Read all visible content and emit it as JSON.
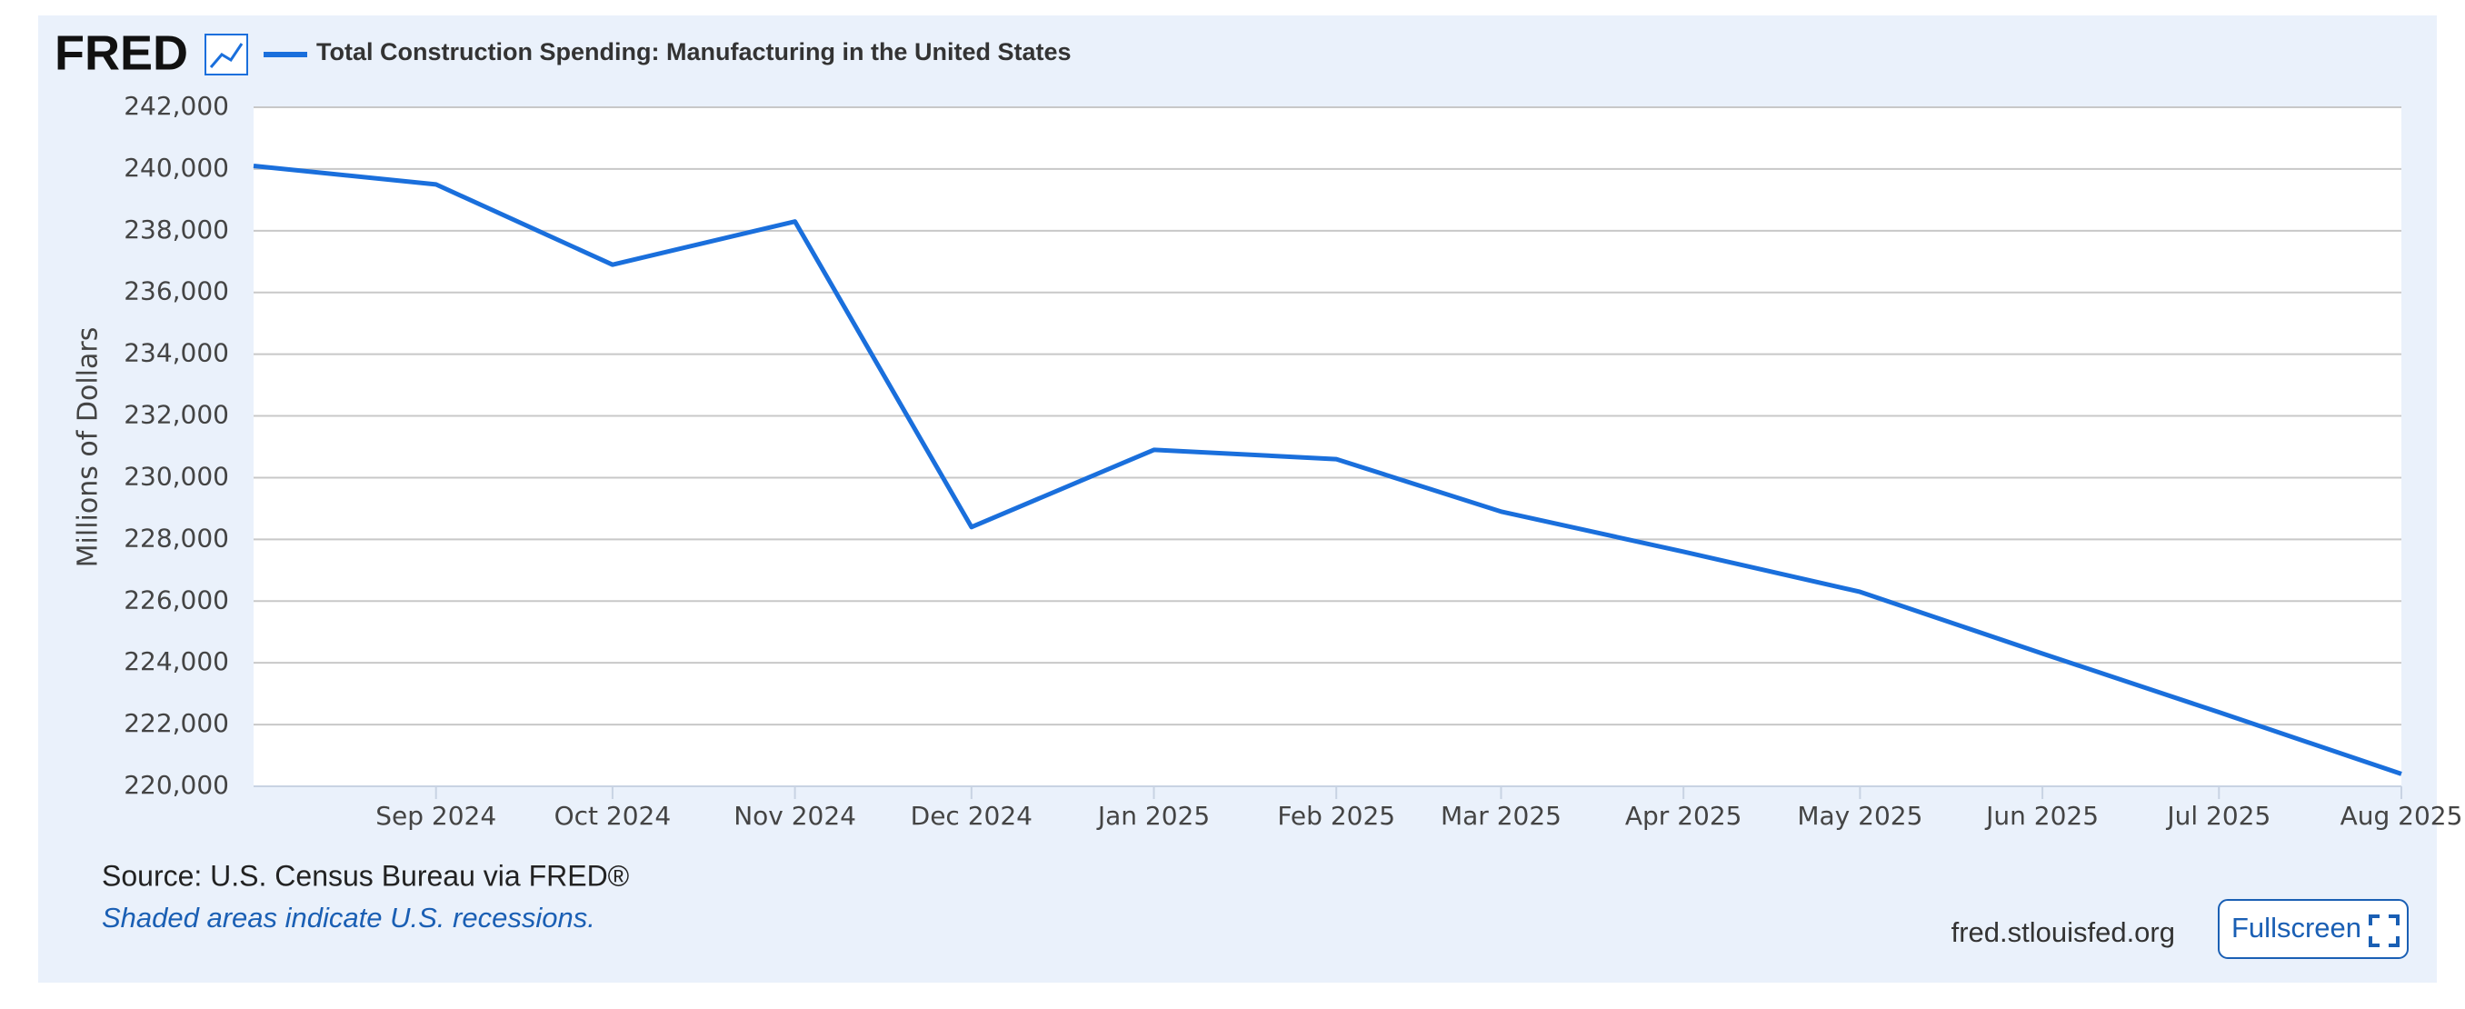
{
  "header": {
    "logo": "FRED"
  },
  "chart_data": {
    "type": "line",
    "y_axis_label": "Millions of Dollars",
    "x": [
      "2024-08",
      "2024-09",
      "2024-10",
      "2024-11",
      "2024-12",
      "2025-01",
      "2025-02",
      "2025-03",
      "2025-04",
      "2025-05",
      "2025-06",
      "2025-07",
      "2025-08"
    ],
    "series": [
      {
        "name": "Total Construction Spending: Manufacturing in the United States",
        "color": "#1a6fdc",
        "values": [
          240100,
          239500,
          236900,
          238300,
          228400,
          230900,
          230600,
          228900,
          227600,
          226300,
          224300,
          222400,
          220400
        ]
      }
    ],
    "xlim": [
      "2024-08",
      "2025-08"
    ],
    "xticks": [
      {
        "value": "2024-09",
        "label": "Sep 2024"
      },
      {
        "value": "2024-10",
        "label": "Oct 2024"
      },
      {
        "value": "2024-11",
        "label": "Nov 2024"
      },
      {
        "value": "2024-12",
        "label": "Dec 2024"
      },
      {
        "value": "2025-01",
        "label": "Jan 2025"
      },
      {
        "value": "2025-02",
        "label": "Feb 2025"
      },
      {
        "value": "2025-03",
        "label": "Mar 2025"
      },
      {
        "value": "2025-04",
        "label": "Apr 2025"
      },
      {
        "value": "2025-05",
        "label": "May 2025"
      },
      {
        "value": "2025-06",
        "label": "Jun 2025"
      },
      {
        "value": "2025-07",
        "label": "Jul 2025"
      },
      {
        "value": "2025-08",
        "label": "Aug 2025"
      }
    ],
    "ylim": [
      220000,
      242000
    ],
    "yticks": [
      {
        "value": 220000,
        "label": "220,000"
      },
      {
        "value": 222000,
        "label": "222,000"
      },
      {
        "value": 224000,
        "label": "224,000"
      },
      {
        "value": 226000,
        "label": "226,000"
      },
      {
        "value": 228000,
        "label": "228,000"
      },
      {
        "value": 230000,
        "label": "230,000"
      },
      {
        "value": 232000,
        "label": "232,000"
      },
      {
        "value": 234000,
        "label": "234,000"
      },
      {
        "value": 236000,
        "label": "236,000"
      },
      {
        "value": 238000,
        "label": "238,000"
      },
      {
        "value": 240000,
        "label": "240,000"
      },
      {
        "value": 242000,
        "label": "242,000"
      }
    ],
    "grid": true
  },
  "footer": {
    "source": "Source: U.S. Census Bureau via FRED®",
    "note": "Shaded areas indicate U.S. recessions.",
    "site": "fred.stlouisfed.org",
    "button": "Fullscreen"
  }
}
